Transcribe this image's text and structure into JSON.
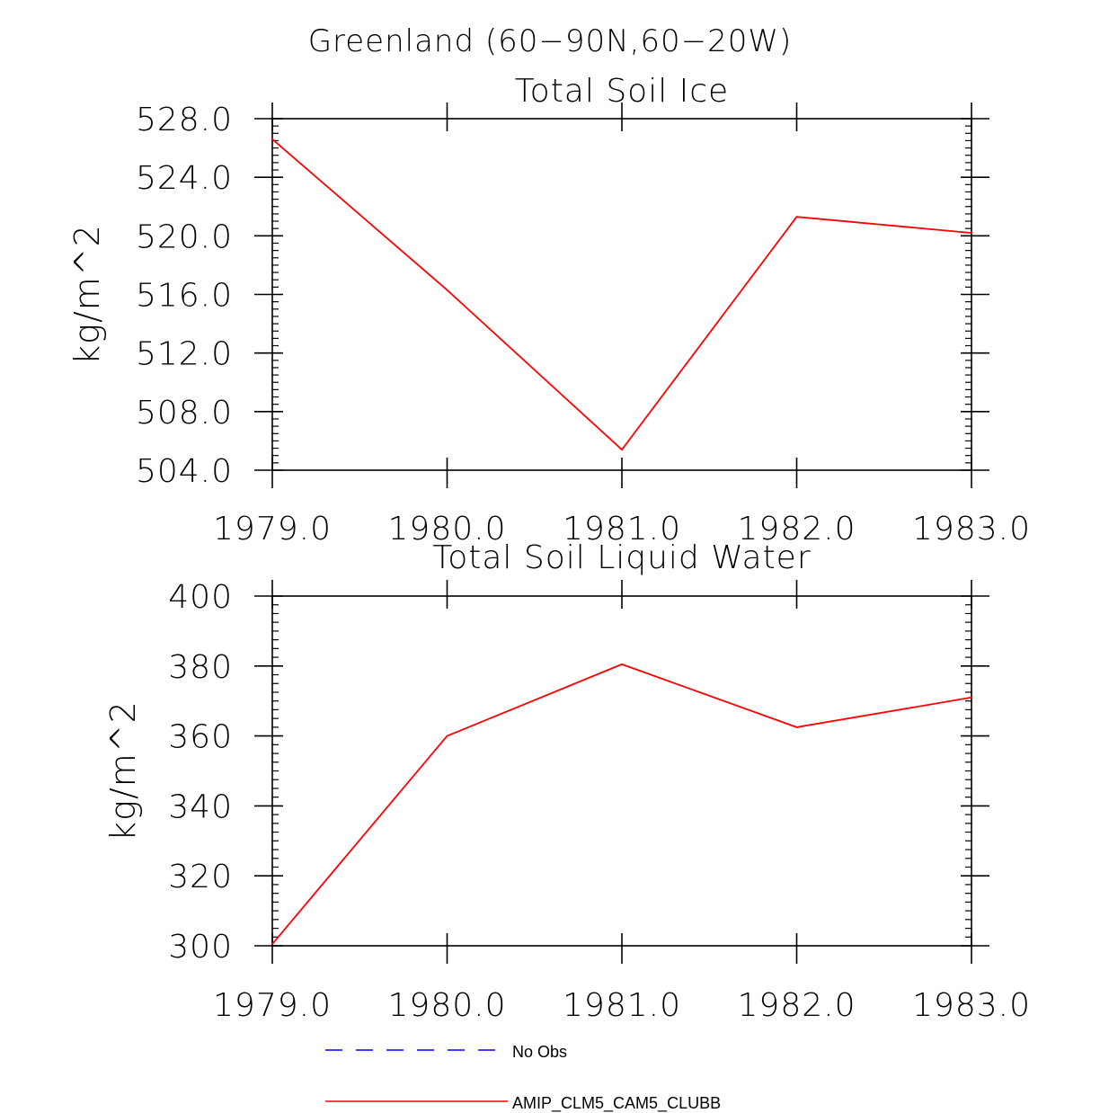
{
  "figure": {
    "title": "Greenland (60−90N,60−20W)"
  },
  "colors": {
    "model": "#ff0000",
    "obs": "#0000ff",
    "axis": "#000000"
  },
  "legend": [
    {
      "label": "No Obs",
      "style": "dashed",
      "color": "#0000ff"
    },
    {
      "label": "AMIP_CLM5_CAM5_CLUBB",
      "style": "solid",
      "color": "#ff0000"
    }
  ],
  "chart_data": [
    {
      "type": "line",
      "title": "Total Soil Ice",
      "xlabel": "",
      "ylabel": "kg/m^2",
      "xlim": [
        1979,
        1983
      ],
      "ylim": [
        504,
        528
      ],
      "x_ticks": [
        "1979.0",
        "1980.0",
        "1981.0",
        "1982.0",
        "1983.0"
      ],
      "y_ticks": [
        "528.0",
        "524.0",
        "520.0",
        "516.0",
        "512.0",
        "508.0",
        "504.0"
      ],
      "series": [
        {
          "name": "AMIP_CLM5_CAM5_CLUBB",
          "x": [
            1979,
            1980,
            1981,
            1982,
            1983
          ],
          "values": [
            526.6,
            516.3,
            505.4,
            521.3,
            520.2
          ]
        }
      ]
    },
    {
      "type": "line",
      "title": "Total Soil Liquid Water",
      "xlabel": "",
      "ylabel": "kg/m^2",
      "xlim": [
        1979,
        1983
      ],
      "ylim": [
        300,
        400
      ],
      "x_ticks": [
        "1979.0",
        "1980.0",
        "1981.0",
        "1982.0",
        "1983.0"
      ],
      "y_ticks": [
        "400",
        "380",
        "360",
        "340",
        "320",
        "300"
      ],
      "series": [
        {
          "name": "AMIP_CLM5_CAM5_CLUBB",
          "x": [
            1979,
            1980,
            1981,
            1982,
            1983
          ],
          "values": [
            300.5,
            360.0,
            380.5,
            362.5,
            371.0
          ]
        }
      ]
    }
  ]
}
